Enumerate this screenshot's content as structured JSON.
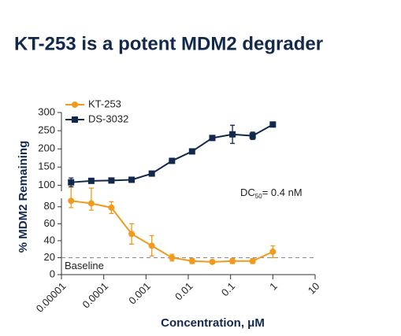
{
  "title": "KT-253 is a potent MDM2 degrader",
  "chart_data": {
    "type": "line",
    "xlabel": "Concentration, μM",
    "ylabel": "% MDM2 Remaining",
    "xscale": "log",
    "xlim": [
      1e-05,
      10
    ],
    "xticks": [
      1e-05,
      0.0001,
      0.001,
      0.01,
      0.1,
      1,
      10
    ],
    "ylim": [
      0,
      300
    ],
    "ybreak": 90,
    "yticks": [
      0,
      20,
      40,
      60,
      80,
      100,
      150,
      200,
      250,
      300
    ],
    "x": [
      1.69e-05,
      5.08e-05,
      0.000152,
      0.000457,
      0.00137,
      0.00412,
      0.0123,
      0.037,
      0.111,
      0.333,
      1
    ],
    "series": [
      {
        "name": "KT-253",
        "color": "#f09a1e",
        "marker": "circle",
        "values": [
          87,
          84,
          79,
          48,
          34,
          20,
          16,
          15,
          16,
          16,
          27
        ],
        "errors": [
          8,
          8,
          7,
          12,
          12,
          4,
          3,
          2,
          3,
          3,
          7
        ]
      },
      {
        "name": "DS-3032",
        "color": "#13294b",
        "marker": "square",
        "values": [
          108,
          112,
          113,
          115,
          132,
          167,
          193,
          230,
          240,
          236,
          267
        ],
        "errors": [
          12,
          4,
          4,
          4,
          4,
          4,
          4,
          4,
          25,
          10,
          4
        ]
      }
    ],
    "baseline": {
      "value": 20,
      "label": "Baseline"
    },
    "annotation": {
      "text": "DC",
      "sub": "50",
      "rest": "= 0.4 nM"
    },
    "legend": "upper left"
  }
}
